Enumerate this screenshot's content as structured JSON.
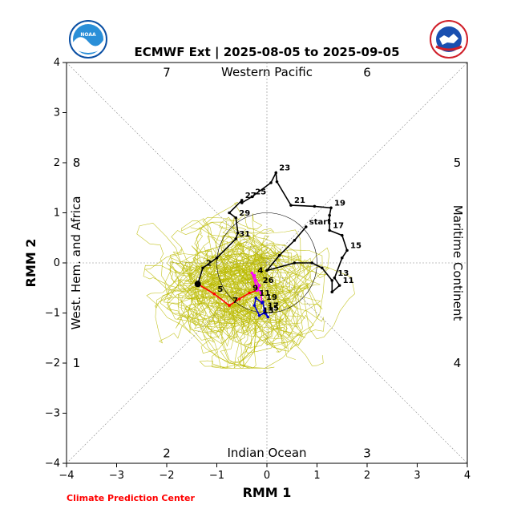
{
  "header": {
    "title": "ECMWF Ext | 2025-08-05 to 2025-09-05",
    "credit": "Climate Prediction Center",
    "logo_left_text": "NOAA",
    "logo_right_text": "NATIONAL WEATHER SERVICE",
    "logo_left_icon": "noaa-logo-icon",
    "logo_right_icon": "nws-logo-icon"
  },
  "chart_data": {
    "type": "line",
    "xlabel": "RMM 1",
    "ylabel": "RMM 2",
    "xlim": [
      -4,
      4
    ],
    "ylim": [
      -4,
      4
    ],
    "xticks": [
      "−4",
      "−3",
      "−2",
      "−1",
      "0",
      "1",
      "2",
      "3",
      "4"
    ],
    "yticks": [
      "−4",
      "−3",
      "−2",
      "−1",
      "0",
      "1",
      "2",
      "3",
      "4"
    ],
    "unit_circle_radius": 1,
    "regions": {
      "top": "Western Pacific",
      "bottom": "Indian Ocean",
      "left": "West. Hem. and Africa",
      "right": "Maritime Continent"
    },
    "phases": [
      {
        "label": "1",
        "x": -3.8,
        "y": -2.0
      },
      {
        "label": "2",
        "x": -2.0,
        "y": -3.8
      },
      {
        "label": "3",
        "x": 2.0,
        "y": -3.8
      },
      {
        "label": "4",
        "x": 3.8,
        "y": -2.0
      },
      {
        "label": "5",
        "x": 3.8,
        "y": 2.0
      },
      {
        "label": "6",
        "x": 2.0,
        "y": 3.8
      },
      {
        "label": "7",
        "x": -2.0,
        "y": 3.8
      },
      {
        "label": "8",
        "x": -3.8,
        "y": 2.0
      }
    ],
    "colors": {
      "observed": "#000000",
      "forecast_1": "#ff0000",
      "forecast_2": "#ff00ff",
      "forecast_3": "#0000cc",
      "ensemble": "#bbbb00",
      "grid": "#888888"
    },
    "start_label": "start",
    "observed_series": {
      "points": [
        {
          "x": 0.78,
          "y": 0.72,
          "label": "start"
        },
        {
          "x": 0.55,
          "y": 0.45,
          "label": ""
        },
        {
          "x": 0.25,
          "y": 0.15,
          "label": ""
        },
        {
          "x": 0.0,
          "y": -0.15,
          "label": ""
        },
        {
          "x": 0.55,
          "y": 0.0,
          "label": ""
        },
        {
          "x": 0.9,
          "y": 0.0,
          "label": ""
        },
        {
          "x": 1.1,
          "y": -0.1,
          "label": ""
        },
        {
          "x": 1.3,
          "y": -0.35,
          "label": ""
        },
        {
          "x": 1.3,
          "y": -0.58,
          "label": ""
        },
        {
          "x": 1.45,
          "y": -0.45,
          "label": "11"
        },
        {
          "x": 1.35,
          "y": -0.3,
          "label": "13"
        },
        {
          "x": 1.5,
          "y": 0.1,
          "label": ""
        },
        {
          "x": 1.6,
          "y": 0.25,
          "label": "15"
        },
        {
          "x": 1.5,
          "y": 0.55,
          "label": ""
        },
        {
          "x": 1.25,
          "y": 0.65,
          "label": "17"
        },
        {
          "x": 1.25,
          "y": 0.95,
          "label": ""
        },
        {
          "x": 1.28,
          "y": 1.1,
          "label": "19"
        },
        {
          "x": 0.95,
          "y": 1.13,
          "label": ""
        },
        {
          "x": 0.48,
          "y": 1.15,
          "label": "21"
        },
        {
          "x": 0.2,
          "y": 1.62,
          "label": ""
        },
        {
          "x": 0.18,
          "y": 1.8,
          "label": "23"
        },
        {
          "x": 0.08,
          "y": 1.6,
          "label": ""
        },
        {
          "x": -0.3,
          "y": 1.32,
          "label": "25"
        },
        {
          "x": -0.5,
          "y": 1.2,
          "label": ""
        },
        {
          "x": -0.5,
          "y": 1.25,
          "label": "27"
        },
        {
          "x": -0.75,
          "y": 1.0,
          "label": ""
        },
        {
          "x": -0.62,
          "y": 0.9,
          "label": "29"
        },
        {
          "x": -0.58,
          "y": 0.6,
          "label": ""
        },
        {
          "x": -0.62,
          "y": 0.48,
          "label": "31"
        },
        {
          "x": -1.0,
          "y": 0.1,
          "label": ""
        },
        {
          "x": -1.28,
          "y": -0.1,
          "label": "2"
        },
        {
          "x": -1.38,
          "y": -0.42,
          "label": ""
        }
      ]
    },
    "series": [
      {
        "values": [
          {
            "x": -1.38,
            "y": -0.42,
            "label": ""
          },
          {
            "x": -1.05,
            "y": -0.62,
            "label": "5"
          },
          {
            "x": -0.75,
            "y": -0.85,
            "label": "7"
          },
          {
            "x": -0.55,
            "y": -0.72,
            "label": ""
          },
          {
            "x": -0.35,
            "y": -0.6,
            "label": "9"
          },
          {
            "x": -0.2,
            "y": -0.55,
            "label": ""
          }
        ]
      },
      {
        "values": [
          {
            "x": -0.2,
            "y": -0.55,
            "label": ""
          },
          {
            "x": -0.15,
            "y": -0.45,
            "label": "26"
          },
          {
            "x": -0.22,
            "y": -0.35,
            "label": ""
          },
          {
            "x": -0.25,
            "y": -0.25,
            "label": "4"
          },
          {
            "x": -0.3,
            "y": -0.2,
            "label": ""
          },
          {
            "x": -0.22,
            "y": -0.45,
            "label": ""
          },
          {
            "x": -0.12,
            "y": -0.6,
            "label": ""
          },
          {
            "x": -0.1,
            "y": -0.8,
            "label": ""
          }
        ]
      },
      {
        "values": [
          {
            "x": -0.1,
            "y": -0.8,
            "label": ""
          },
          {
            "x": -0.22,
            "y": -0.7,
            "label": "11"
          },
          {
            "x": -0.25,
            "y": -0.85,
            "label": ""
          },
          {
            "x": -0.15,
            "y": -1.05,
            "label": "13"
          },
          {
            "x": -0.05,
            "y": -1.0,
            "label": "15"
          },
          {
            "x": 0.02,
            "y": -1.08,
            "label": ""
          },
          {
            "x": -0.05,
            "y": -0.95,
            "label": "17"
          },
          {
            "x": -0.08,
            "y": -0.78,
            "label": "19"
          }
        ]
      }
    ],
    "ensemble_member_count": 51,
    "ensemble_center": {
      "x": -0.5,
      "y": -0.55
    },
    "ensemble_spread": {
      "x": 0.9,
      "y": 0.8
    },
    "start_point": {
      "x": -1.38,
      "y": -0.42
    }
  }
}
